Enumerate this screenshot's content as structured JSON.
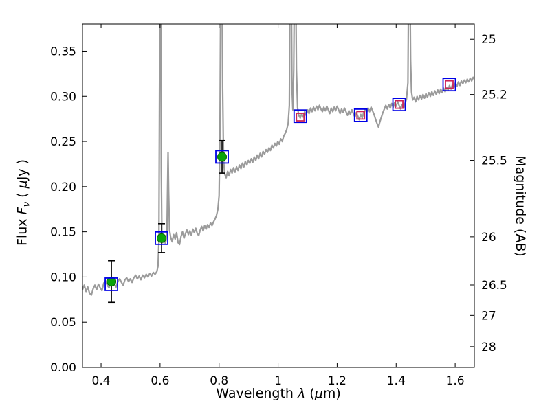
{
  "figure": {
    "background": "#ffffff"
  },
  "chart_data": {
    "type": "line+scatter",
    "title": "",
    "xlabel_parts": {
      "text1": "Wavelength  ",
      "sym": "λ",
      "text2": " (",
      "mu": "μ",
      "text3": "m)"
    },
    "ylabel_parts": {
      "text1": "Flux  ",
      "sym": "F",
      "sub": "ν",
      "text2": " ( ",
      "mu": "μ",
      "text3": "Jy )"
    },
    "ylabel_right": "Magnitude (AB)",
    "xlim": [
      0.337,
      1.665
    ],
    "ylim": [
      0.0,
      0.38
    ],
    "grid": false,
    "legend": "none",
    "x_ticks": {
      "values": [
        0.4,
        0.6,
        0.8,
        1.0,
        1.2,
        1.4,
        1.6
      ],
      "labels": [
        "0.4",
        "0.6",
        "0.8",
        "1",
        "1.2",
        "1.4",
        "1.6"
      ]
    },
    "y_ticks": {
      "values": [
        0.0,
        0.05,
        0.1,
        0.15,
        0.2,
        0.25,
        0.3,
        0.35
      ],
      "labels": [
        "0.00",
        "0.05",
        "0.10",
        "0.15",
        "0.20",
        "0.25",
        "0.30",
        "0.35"
      ]
    },
    "right_ticks": {
      "labels": [
        "25",
        "25.2",
        "25.5",
        "26",
        "26.5",
        "27",
        "28"
      ],
      "flux_positions": [
        0.3631,
        0.302,
        0.2291,
        0.1445,
        0.0912,
        0.0575,
        0.0229
      ]
    },
    "spectrum": {
      "color": "#9b9b9b",
      "width": 2.2,
      "points": [
        [
          0.337,
          0.086
        ],
        [
          0.343,
          0.091
        ],
        [
          0.349,
          0.084
        ],
        [
          0.355,
          0.089
        ],
        [
          0.361,
          0.082
        ],
        [
          0.367,
          0.08
        ],
        [
          0.373,
          0.087
        ],
        [
          0.379,
          0.091
        ],
        [
          0.385,
          0.086
        ],
        [
          0.391,
          0.092
        ],
        [
          0.397,
          0.088
        ],
        [
          0.403,
          0.085
        ],
        [
          0.409,
          0.093
        ],
        [
          0.415,
          0.096
        ],
        [
          0.421,
          0.091
        ],
        [
          0.427,
          0.088
        ],
        [
          0.433,
          0.094
        ],
        [
          0.439,
          0.097
        ],
        [
          0.445,
          0.092
        ],
        [
          0.451,
          0.089
        ],
        [
          0.457,
          0.095
        ],
        [
          0.463,
          0.098
        ],
        [
          0.469,
          0.094
        ],
        [
          0.475,
          0.091
        ],
        [
          0.481,
          0.097
        ],
        [
          0.487,
          0.099
        ],
        [
          0.493,
          0.095
        ],
        [
          0.499,
          0.098
        ],
        [
          0.505,
          0.094
        ],
        [
          0.511,
          0.099
        ],
        [
          0.517,
          0.102
        ],
        [
          0.523,
          0.098
        ],
        [
          0.529,
          0.101
        ],
        [
          0.535,
          0.097
        ],
        [
          0.541,
          0.102
        ],
        [
          0.547,
          0.099
        ],
        [
          0.553,
          0.103
        ],
        [
          0.559,
          0.1
        ],
        [
          0.565,
          0.104
        ],
        [
          0.571,
          0.101
        ],
        [
          0.577,
          0.105
        ],
        [
          0.583,
          0.103
        ],
        [
          0.589,
          0.106
        ],
        [
          0.593,
          0.112
        ],
        [
          0.596,
          0.14
        ],
        [
          0.598,
          0.3
        ],
        [
          0.6,
          0.46
        ],
        [
          0.602,
          0.46
        ],
        [
          0.604,
          0.22
        ],
        [
          0.606,
          0.15
        ],
        [
          0.609,
          0.138
        ],
        [
          0.613,
          0.142
        ],
        [
          0.618,
          0.137
        ],
        [
          0.623,
          0.146
        ],
        [
          0.627,
          0.238
        ],
        [
          0.629,
          0.195
        ],
        [
          0.632,
          0.152
        ],
        [
          0.636,
          0.144
        ],
        [
          0.641,
          0.139
        ],
        [
          0.646,
          0.147
        ],
        [
          0.651,
          0.142
        ],
        [
          0.656,
          0.149
        ],
        [
          0.661,
          0.138
        ],
        [
          0.666,
          0.136
        ],
        [
          0.671,
          0.145
        ],
        [
          0.676,
          0.15
        ],
        [
          0.681,
          0.143
        ],
        [
          0.686,
          0.148
        ],
        [
          0.691,
          0.152
        ],
        [
          0.696,
          0.147
        ],
        [
          0.701,
          0.151
        ],
        [
          0.706,
          0.146
        ],
        [
          0.711,
          0.153
        ],
        [
          0.716,
          0.149
        ],
        [
          0.721,
          0.154
        ],
        [
          0.726,
          0.148
        ],
        [
          0.731,
          0.146
        ],
        [
          0.736,
          0.152
        ],
        [
          0.741,
          0.156
        ],
        [
          0.746,
          0.151
        ],
        [
          0.751,
          0.157
        ],
        [
          0.756,
          0.153
        ],
        [
          0.761,
          0.158
        ],
        [
          0.766,
          0.155
        ],
        [
          0.771,
          0.16
        ],
        [
          0.776,
          0.157
        ],
        [
          0.781,
          0.161
        ],
        [
          0.786,
          0.164
        ],
        [
          0.791,
          0.168
        ],
        [
          0.796,
          0.175
        ],
        [
          0.8,
          0.19
        ],
        [
          0.803,
          0.26
        ],
        [
          0.806,
          0.46
        ],
        [
          0.809,
          0.46
        ],
        [
          0.812,
          0.31
        ],
        [
          0.815,
          0.23
        ],
        [
          0.819,
          0.214
        ],
        [
          0.824,
          0.21
        ],
        [
          0.829,
          0.217
        ],
        [
          0.834,
          0.212
        ],
        [
          0.839,
          0.219
        ],
        [
          0.844,
          0.215
        ],
        [
          0.849,
          0.221
        ],
        [
          0.854,
          0.216
        ],
        [
          0.859,
          0.222
        ],
        [
          0.864,
          0.218
        ],
        [
          0.869,
          0.224
        ],
        [
          0.874,
          0.22
        ],
        [
          0.879,
          0.226
        ],
        [
          0.884,
          0.222
        ],
        [
          0.889,
          0.228
        ],
        [
          0.894,
          0.224
        ],
        [
          0.899,
          0.229
        ],
        [
          0.904,
          0.226
        ],
        [
          0.909,
          0.231
        ],
        [
          0.914,
          0.227
        ],
        [
          0.919,
          0.233
        ],
        [
          0.924,
          0.229
        ],
        [
          0.929,
          0.235
        ],
        [
          0.934,
          0.231
        ],
        [
          0.939,
          0.237
        ],
        [
          0.944,
          0.233
        ],
        [
          0.949,
          0.239
        ],
        [
          0.954,
          0.236
        ],
        [
          0.959,
          0.241
        ],
        [
          0.964,
          0.238
        ],
        [
          0.969,
          0.243
        ],
        [
          0.974,
          0.24
        ],
        [
          0.979,
          0.246
        ],
        [
          0.984,
          0.243
        ],
        [
          0.989,
          0.248
        ],
        [
          0.994,
          0.245
        ],
        [
          0.999,
          0.25
        ],
        [
          1.004,
          0.247
        ],
        [
          1.009,
          0.253
        ],
        [
          1.014,
          0.25
        ],
        [
          1.019,
          0.256
        ],
        [
          1.024,
          0.259
        ],
        [
          1.029,
          0.263
        ],
        [
          1.034,
          0.27
        ],
        [
          1.038,
          0.29
        ],
        [
          1.041,
          0.46
        ],
        [
          1.044,
          0.46
        ],
        [
          1.047,
          0.31
        ],
        [
          1.05,
          0.285
        ],
        [
          1.053,
          0.33
        ],
        [
          1.056,
          0.46
        ],
        [
          1.059,
          0.46
        ],
        [
          1.062,
          0.33
        ],
        [
          1.066,
          0.287
        ],
        [
          1.07,
          0.279
        ],
        [
          1.075,
          0.276
        ],
        [
          1.08,
          0.281
        ],
        [
          1.085,
          0.277
        ],
        [
          1.09,
          0.283
        ],
        [
          1.095,
          0.279
        ],
        [
          1.1,
          0.285
        ],
        [
          1.105,
          0.281
        ],
        [
          1.11,
          0.287
        ],
        [
          1.115,
          0.283
        ],
        [
          1.12,
          0.288
        ],
        [
          1.125,
          0.284
        ],
        [
          1.13,
          0.289
        ],
        [
          1.135,
          0.285
        ],
        [
          1.14,
          0.29
        ],
        [
          1.145,
          0.286
        ],
        [
          1.15,
          0.283
        ],
        [
          1.155,
          0.288
        ],
        [
          1.16,
          0.284
        ],
        [
          1.165,
          0.289
        ],
        [
          1.17,
          0.285
        ],
        [
          1.175,
          0.281
        ],
        [
          1.18,
          0.287
        ],
        [
          1.185,
          0.283
        ],
        [
          1.19,
          0.288
        ],
        [
          1.195,
          0.284
        ],
        [
          1.2,
          0.289
        ],
        [
          1.205,
          0.285
        ],
        [
          1.21,
          0.281
        ],
        [
          1.215,
          0.286
        ],
        [
          1.22,
          0.282
        ],
        [
          1.225,
          0.287
        ],
        [
          1.23,
          0.283
        ],
        [
          1.235,
          0.279
        ],
        [
          1.24,
          0.284
        ],
        [
          1.245,
          0.28
        ],
        [
          1.25,
          0.285
        ],
        [
          1.255,
          0.281
        ],
        [
          1.26,
          0.277
        ],
        [
          1.265,
          0.282
        ],
        [
          1.27,
          0.278
        ],
        [
          1.275,
          0.274
        ],
        [
          1.28,
          0.28
        ],
        [
          1.285,
          0.276
        ],
        [
          1.29,
          0.282
        ],
        [
          1.295,
          0.286
        ],
        [
          1.3,
          0.282
        ],
        [
          1.305,
          0.287
        ],
        [
          1.31,
          0.283
        ],
        [
          1.315,
          0.288
        ],
        [
          1.32,
          0.284
        ],
        [
          1.325,
          0.28
        ],
        [
          1.33,
          0.275
        ],
        [
          1.335,
          0.27
        ],
        [
          1.34,
          0.266
        ],
        [
          1.345,
          0.272
        ],
        [
          1.35,
          0.277
        ],
        [
          1.355,
          0.282
        ],
        [
          1.36,
          0.286
        ],
        [
          1.365,
          0.29
        ],
        [
          1.37,
          0.286
        ],
        [
          1.375,
          0.291
        ],
        [
          1.38,
          0.287
        ],
        [
          1.385,
          0.292
        ],
        [
          1.39,
          0.288
        ],
        [
          1.395,
          0.293
        ],
        [
          1.4,
          0.289
        ],
        [
          1.405,
          0.294
        ],
        [
          1.41,
          0.29
        ],
        [
          1.415,
          0.286
        ],
        [
          1.42,
          0.291
        ],
        [
          1.425,
          0.287
        ],
        [
          1.43,
          0.292
        ],
        [
          1.435,
          0.297
        ],
        [
          1.44,
          0.315
        ],
        [
          1.443,
          0.46
        ],
        [
          1.446,
          0.46
        ],
        [
          1.449,
          0.34
        ],
        [
          1.452,
          0.305
        ],
        [
          1.456,
          0.296
        ],
        [
          1.461,
          0.299
        ],
        [
          1.466,
          0.294
        ],
        [
          1.471,
          0.3
        ],
        [
          1.476,
          0.296
        ],
        [
          1.481,
          0.301
        ],
        [
          1.486,
          0.297
        ],
        [
          1.491,
          0.302
        ],
        [
          1.496,
          0.298
        ],
        [
          1.501,
          0.303
        ],
        [
          1.506,
          0.299
        ],
        [
          1.511,
          0.304
        ],
        [
          1.516,
          0.3
        ],
        [
          1.521,
          0.305
        ],
        [
          1.526,
          0.301
        ],
        [
          1.531,
          0.306
        ],
        [
          1.536,
          0.302
        ],
        [
          1.541,
          0.307
        ],
        [
          1.546,
          0.303
        ],
        [
          1.551,
          0.308
        ],
        [
          1.556,
          0.304
        ],
        [
          1.561,
          0.309
        ],
        [
          1.566,
          0.305
        ],
        [
          1.571,
          0.31
        ],
        [
          1.576,
          0.307
        ],
        [
          1.581,
          0.312
        ],
        [
          1.586,
          0.308
        ],
        [
          1.591,
          0.313
        ],
        [
          1.596,
          0.31
        ],
        [
          1.601,
          0.315
        ],
        [
          1.606,
          0.311
        ],
        [
          1.611,
          0.316
        ],
        [
          1.616,
          0.312
        ],
        [
          1.621,
          0.317
        ],
        [
          1.626,
          0.314
        ],
        [
          1.631,
          0.318
        ],
        [
          1.636,
          0.315
        ],
        [
          1.641,
          0.319
        ],
        [
          1.646,
          0.316
        ],
        [
          1.651,
          0.32
        ],
        [
          1.656,
          0.317
        ],
        [
          1.661,
          0.321
        ],
        [
          1.665,
          0.319
        ]
      ]
    },
    "photometry_observed": {
      "symbol": "filled-circle-with-errorbar",
      "fill": "#0aa40a",
      "edge": "#006400",
      "error_color": "#000000",
      "points": [
        {
          "x": 0.435,
          "y": 0.095,
          "yerr": 0.023
        },
        {
          "x": 0.605,
          "y": 0.143,
          "yerr": 0.016
        },
        {
          "x": 0.81,
          "y": 0.233,
          "yerr": 0.018
        }
      ]
    },
    "photometry_model": {
      "symbol": "open-square",
      "color": "#0000e6",
      "points": [
        [
          0.435,
          0.092
        ],
        [
          0.605,
          0.143
        ],
        [
          0.81,
          0.233
        ],
        [
          1.075,
          0.278
        ],
        [
          1.28,
          0.279
        ],
        [
          1.41,
          0.291
        ],
        [
          1.58,
          0.313
        ]
      ]
    },
    "photometry_fit": {
      "symbol": "open-square-small",
      "color": "#cc2255",
      "points": [
        [
          1.075,
          0.277
        ],
        [
          1.28,
          0.279
        ],
        [
          1.41,
          0.291
        ],
        [
          1.58,
          0.313
        ]
      ]
    }
  }
}
